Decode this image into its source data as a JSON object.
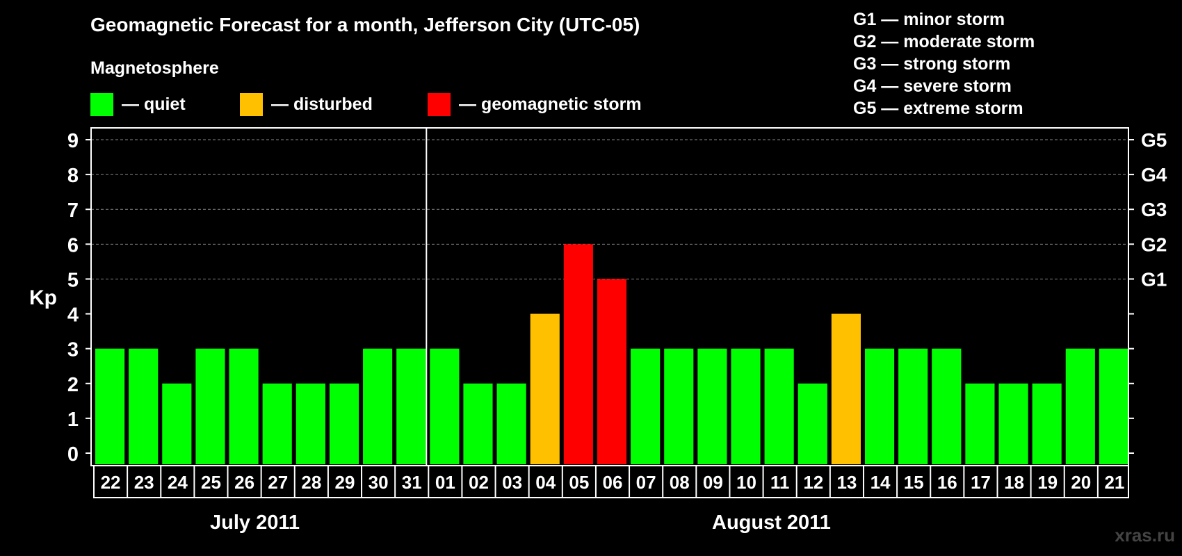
{
  "title": "Geomagnetic Forecast for a month, Jefferson City (UTC-05)",
  "subtitle": "Magnetosphere",
  "legend": [
    {
      "label": "— quiet",
      "color": "#00ff00"
    },
    {
      "label": "— disturbed",
      "color": "#ffc000"
    },
    {
      "label": "— geomagnetic storm",
      "color": "#ff0000"
    }
  ],
  "g_legend": [
    "G1 — minor storm",
    "G2 — moderate storm",
    "G3 — strong storm",
    "G4 — severe storm",
    "G5 — extreme storm"
  ],
  "months": [
    "July 2011",
    "August 2011"
  ],
  "watermark": "xras.ru",
  "chart_data": {
    "type": "bar",
    "ylabel": "Kp",
    "ylim": [
      0,
      9
    ],
    "yticks": [
      0,
      1,
      2,
      3,
      4,
      5,
      6,
      7,
      8,
      9
    ],
    "right_axis": [
      {
        "kp": 5,
        "label": "G1"
      },
      {
        "kp": 6,
        "label": "G2"
      },
      {
        "kp": 7,
        "label": "G3"
      },
      {
        "kp": 8,
        "label": "G4"
      },
      {
        "kp": 9,
        "label": "G5"
      }
    ],
    "grid": "dashed horizontal at Kp 5–9",
    "categories": [
      "22",
      "23",
      "24",
      "25",
      "26",
      "27",
      "28",
      "29",
      "30",
      "31",
      "01",
      "02",
      "03",
      "04",
      "05",
      "06",
      "07",
      "08",
      "09",
      "10",
      "11",
      "12",
      "13",
      "14",
      "15",
      "16",
      "17",
      "18",
      "19",
      "20",
      "21"
    ],
    "values": [
      3,
      3,
      2,
      3,
      3,
      2,
      2,
      2,
      3,
      3,
      3,
      2,
      2,
      4,
      6,
      5,
      3,
      3,
      3,
      3,
      3,
      2,
      4,
      3,
      3,
      3,
      2,
      2,
      2,
      3,
      3
    ],
    "colors": {
      "quiet": "#00ff00",
      "disturbed": "#ffc000",
      "storm": "#ff0000"
    }
  }
}
